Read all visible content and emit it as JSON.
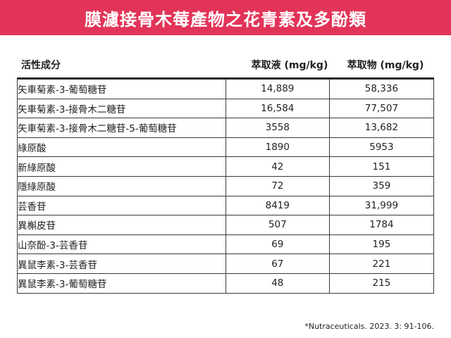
{
  "title": "膜濾接骨木莓產物之花青素及多酚類",
  "colors": {
    "banner": "#e23458",
    "text": "#222222"
  },
  "headers": {
    "compound": "活性成分",
    "liquid": "萃取液 (mg/kg)",
    "solid": "萃取物 (mg/kg)"
  },
  "rows": [
    {
      "name": "矢車菊素-3-葡萄糖苷",
      "liquid": "14,889",
      "solid": "58,336"
    },
    {
      "name": "矢車菊素-3-接骨木二糖苷",
      "liquid": "16,584",
      "solid": "77,507"
    },
    {
      "name": "矢車菊素-3-接骨木二糖苷-5-葡萄糖苷",
      "liquid": "3558",
      "solid": "13,682"
    },
    {
      "name": "綠原酸",
      "liquid": "1890",
      "solid": "5953"
    },
    {
      "name": "新綠原酸",
      "liquid": "42",
      "solid": "151"
    },
    {
      "name": "隱綠原酸",
      "liquid": "72",
      "solid": "359"
    },
    {
      "name": "芸香苷",
      "liquid": "8419",
      "solid": "31,999"
    },
    {
      "name": "異槲皮苷",
      "liquid": "507",
      "solid": "1784"
    },
    {
      "name": "山奈酚-3-芸香苷",
      "liquid": "69",
      "solid": "195"
    },
    {
      "name": "異鼠李素-3-芸香苷",
      "liquid": "67",
      "solid": "221"
    },
    {
      "name": "異鼠李素-3-葡萄糖苷",
      "liquid": "48",
      "solid": "215"
    }
  ],
  "footnote": "*Nutraceuticals. 2023. 3: 91-106."
}
